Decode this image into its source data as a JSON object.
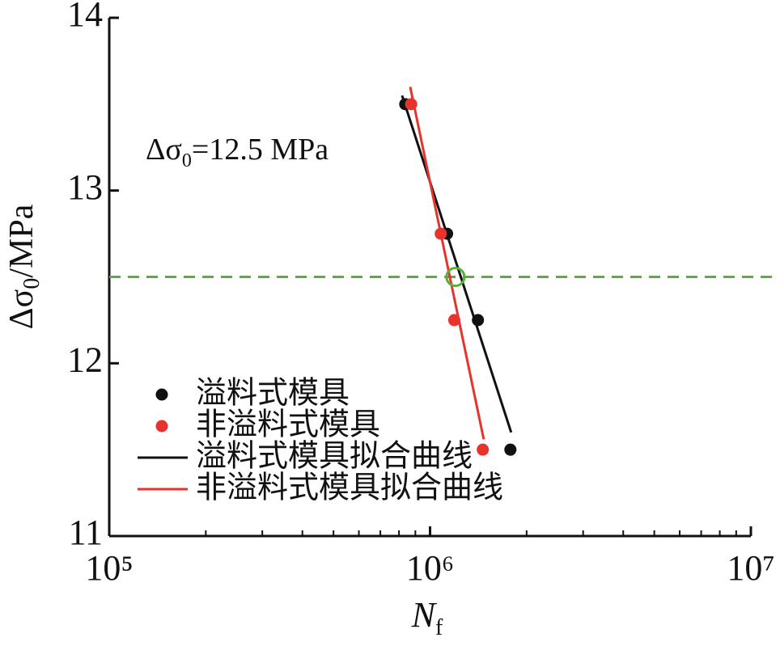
{
  "chart_data": {
    "type": "scatter",
    "annotation": {
      "main": "Δσ",
      "sub": "0",
      "rest": "=12.5 MPa"
    },
    "ylabel": {
      "main": "Δσ",
      "sub": "0",
      "rest": "/MPa"
    },
    "xlabel": {
      "main": "N",
      "sub": "f"
    },
    "xscale": "log",
    "xlim": [
      100000,
      10000000
    ],
    "ylim": [
      11,
      14
    ],
    "xticks": [
      {
        "value": 100000,
        "label": "10⁵"
      },
      {
        "value": 1000000,
        "label": "10⁶"
      },
      {
        "value": 10000000,
        "label": "10⁷"
      }
    ],
    "xminorticks": [
      200000,
      300000,
      400000,
      500000,
      600000,
      700000,
      800000,
      900000,
      2000000,
      3000000,
      4000000,
      5000000,
      6000000,
      7000000,
      8000000,
      9000000
    ],
    "yticks": [
      11,
      12,
      13,
      14
    ],
    "legend": "lower left",
    "threshold": {
      "value": 12.5,
      "color": "#5aae3a",
      "x": 1200000
    },
    "series": [
      {
        "name": "溢料式模具",
        "kind": "points",
        "color": "#111111",
        "x": [
          837000,
          1130000,
          1410000,
          1780000
        ],
        "values": [
          13.5,
          12.75,
          12.25,
          11.5
        ]
      },
      {
        "name": "非溢料式模具",
        "kind": "points",
        "color": "#e8322c",
        "x": [
          873000,
          1080000,
          1190000,
          1460000
        ],
        "values": [
          13.5,
          12.75,
          12.25,
          11.5
        ]
      },
      {
        "name": "溢料式模具拟合曲线",
        "kind": "line",
        "color": "#111111",
        "x": [
          818000,
          1790000
        ],
        "values": [
          13.55,
          11.6
        ]
      },
      {
        "name": "非溢料式模具拟合曲线",
        "kind": "line",
        "color": "#e8322c",
        "x": [
          867000,
          1470000
        ],
        "values": [
          13.6,
          11.56
        ]
      }
    ]
  }
}
